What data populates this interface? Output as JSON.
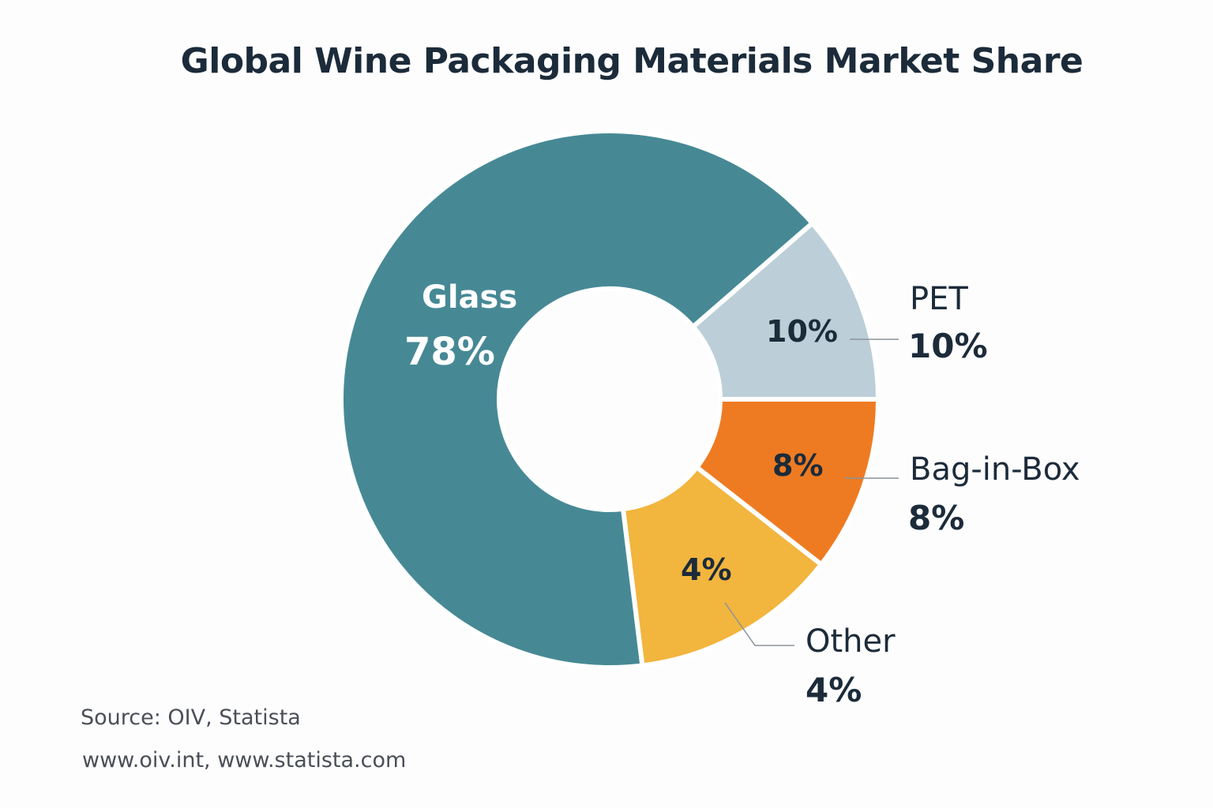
{
  "title": "Global Wine Packaging Materials Market Share",
  "chart_data": {
    "type": "pie",
    "subtype": "donut",
    "title": "Global Wine Packaging Materials Market Share",
    "categories": [
      "Glass",
      "PET",
      "Bag-in-Box",
      "Other"
    ],
    "values": [
      78,
      10,
      8,
      4
    ],
    "unit": "%",
    "colors": [
      "#468995",
      "#bccfd8",
      "#ee7b22",
      "#f2b53e"
    ],
    "labels": {
      "glass": {
        "name": "Glass",
        "value": "78%"
      },
      "pet": {
        "name": "PET",
        "value": "10%",
        "inner": "10%"
      },
      "bag": {
        "name": "Bag-in-Box",
        "value": "8%",
        "inner": "8%"
      },
      "other": {
        "name": "Other",
        "value": "4%",
        "inner": "4%"
      }
    },
    "legend": "none (callout labels)"
  },
  "footer": {
    "source": "Source: OIV, Statista",
    "urls": "www.oiv.int, www.statista.com"
  }
}
